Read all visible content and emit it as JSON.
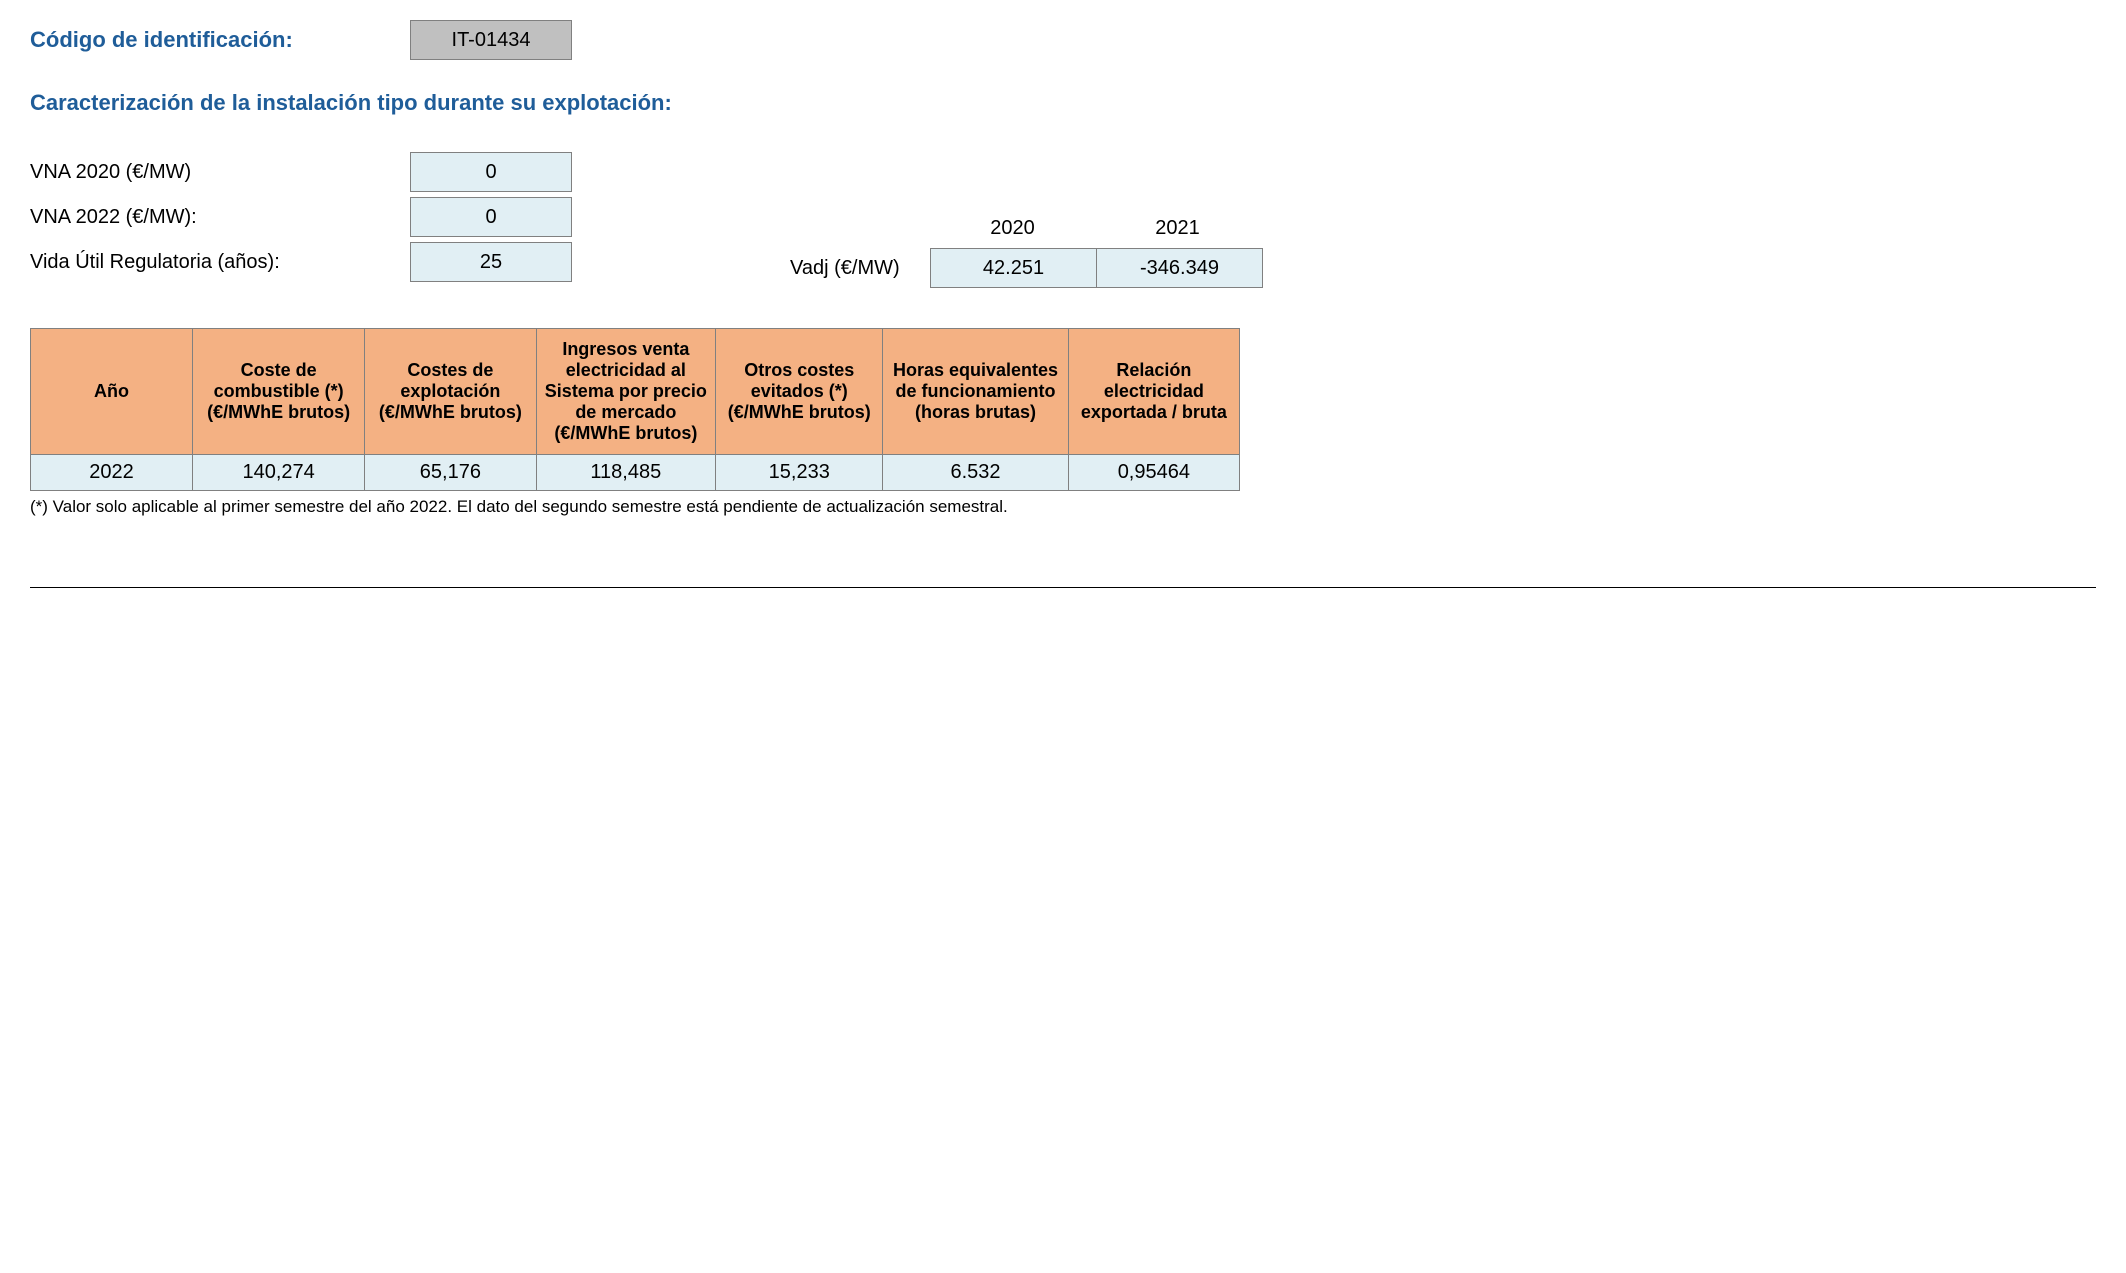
{
  "header": {
    "id_label": "Código de identificación:",
    "id_value": "IT-01434",
    "section_title": "Caracterización de la instalación tipo durante su explotación:"
  },
  "params": {
    "vna2020_label": "VNA 2020 (€/MW)",
    "vna2020_value": "0",
    "vna2022_label": "VNA 2022 (€/MW):",
    "vna2022_value": "0",
    "vida_label": "Vida Útil Regulatoria (años):",
    "vida_value": "25"
  },
  "vadj": {
    "label": "Vadj (€/MW)",
    "years": [
      "2020",
      "2021"
    ],
    "values": [
      "42.251",
      "-346.349"
    ]
  },
  "table": {
    "columns": [
      "Año",
      "Coste de combustible (*) (€/MWhE brutos)",
      "Costes de explotación (€/MWhE brutos)",
      "Ingresos venta electricidad al Sistema por precio de mercado (€/MWhE brutos)",
      "Otros costes evitados (*) (€/MWhE brutos)",
      "Horas equivalentes de funcionamiento (horas brutas)",
      "Relación electricidad exportada / bruta"
    ],
    "rows": [
      [
        "2022",
        "140,274",
        "65,176",
        "118,485",
        "15,233",
        "6.532",
        "0,95464"
      ]
    ],
    "col_widths": [
      "170px",
      "170px",
      "170px",
      "180px",
      "170px",
      "180px",
      "170px"
    ],
    "header_bg": "#f4b183",
    "cell_bg": "#e1eff4",
    "border_color": "#808080"
  },
  "footnote": "(*) Valor solo aplicable al primer semestre del año 2022. El dato del segundo semestre está pendiente de actualización semestral."
}
